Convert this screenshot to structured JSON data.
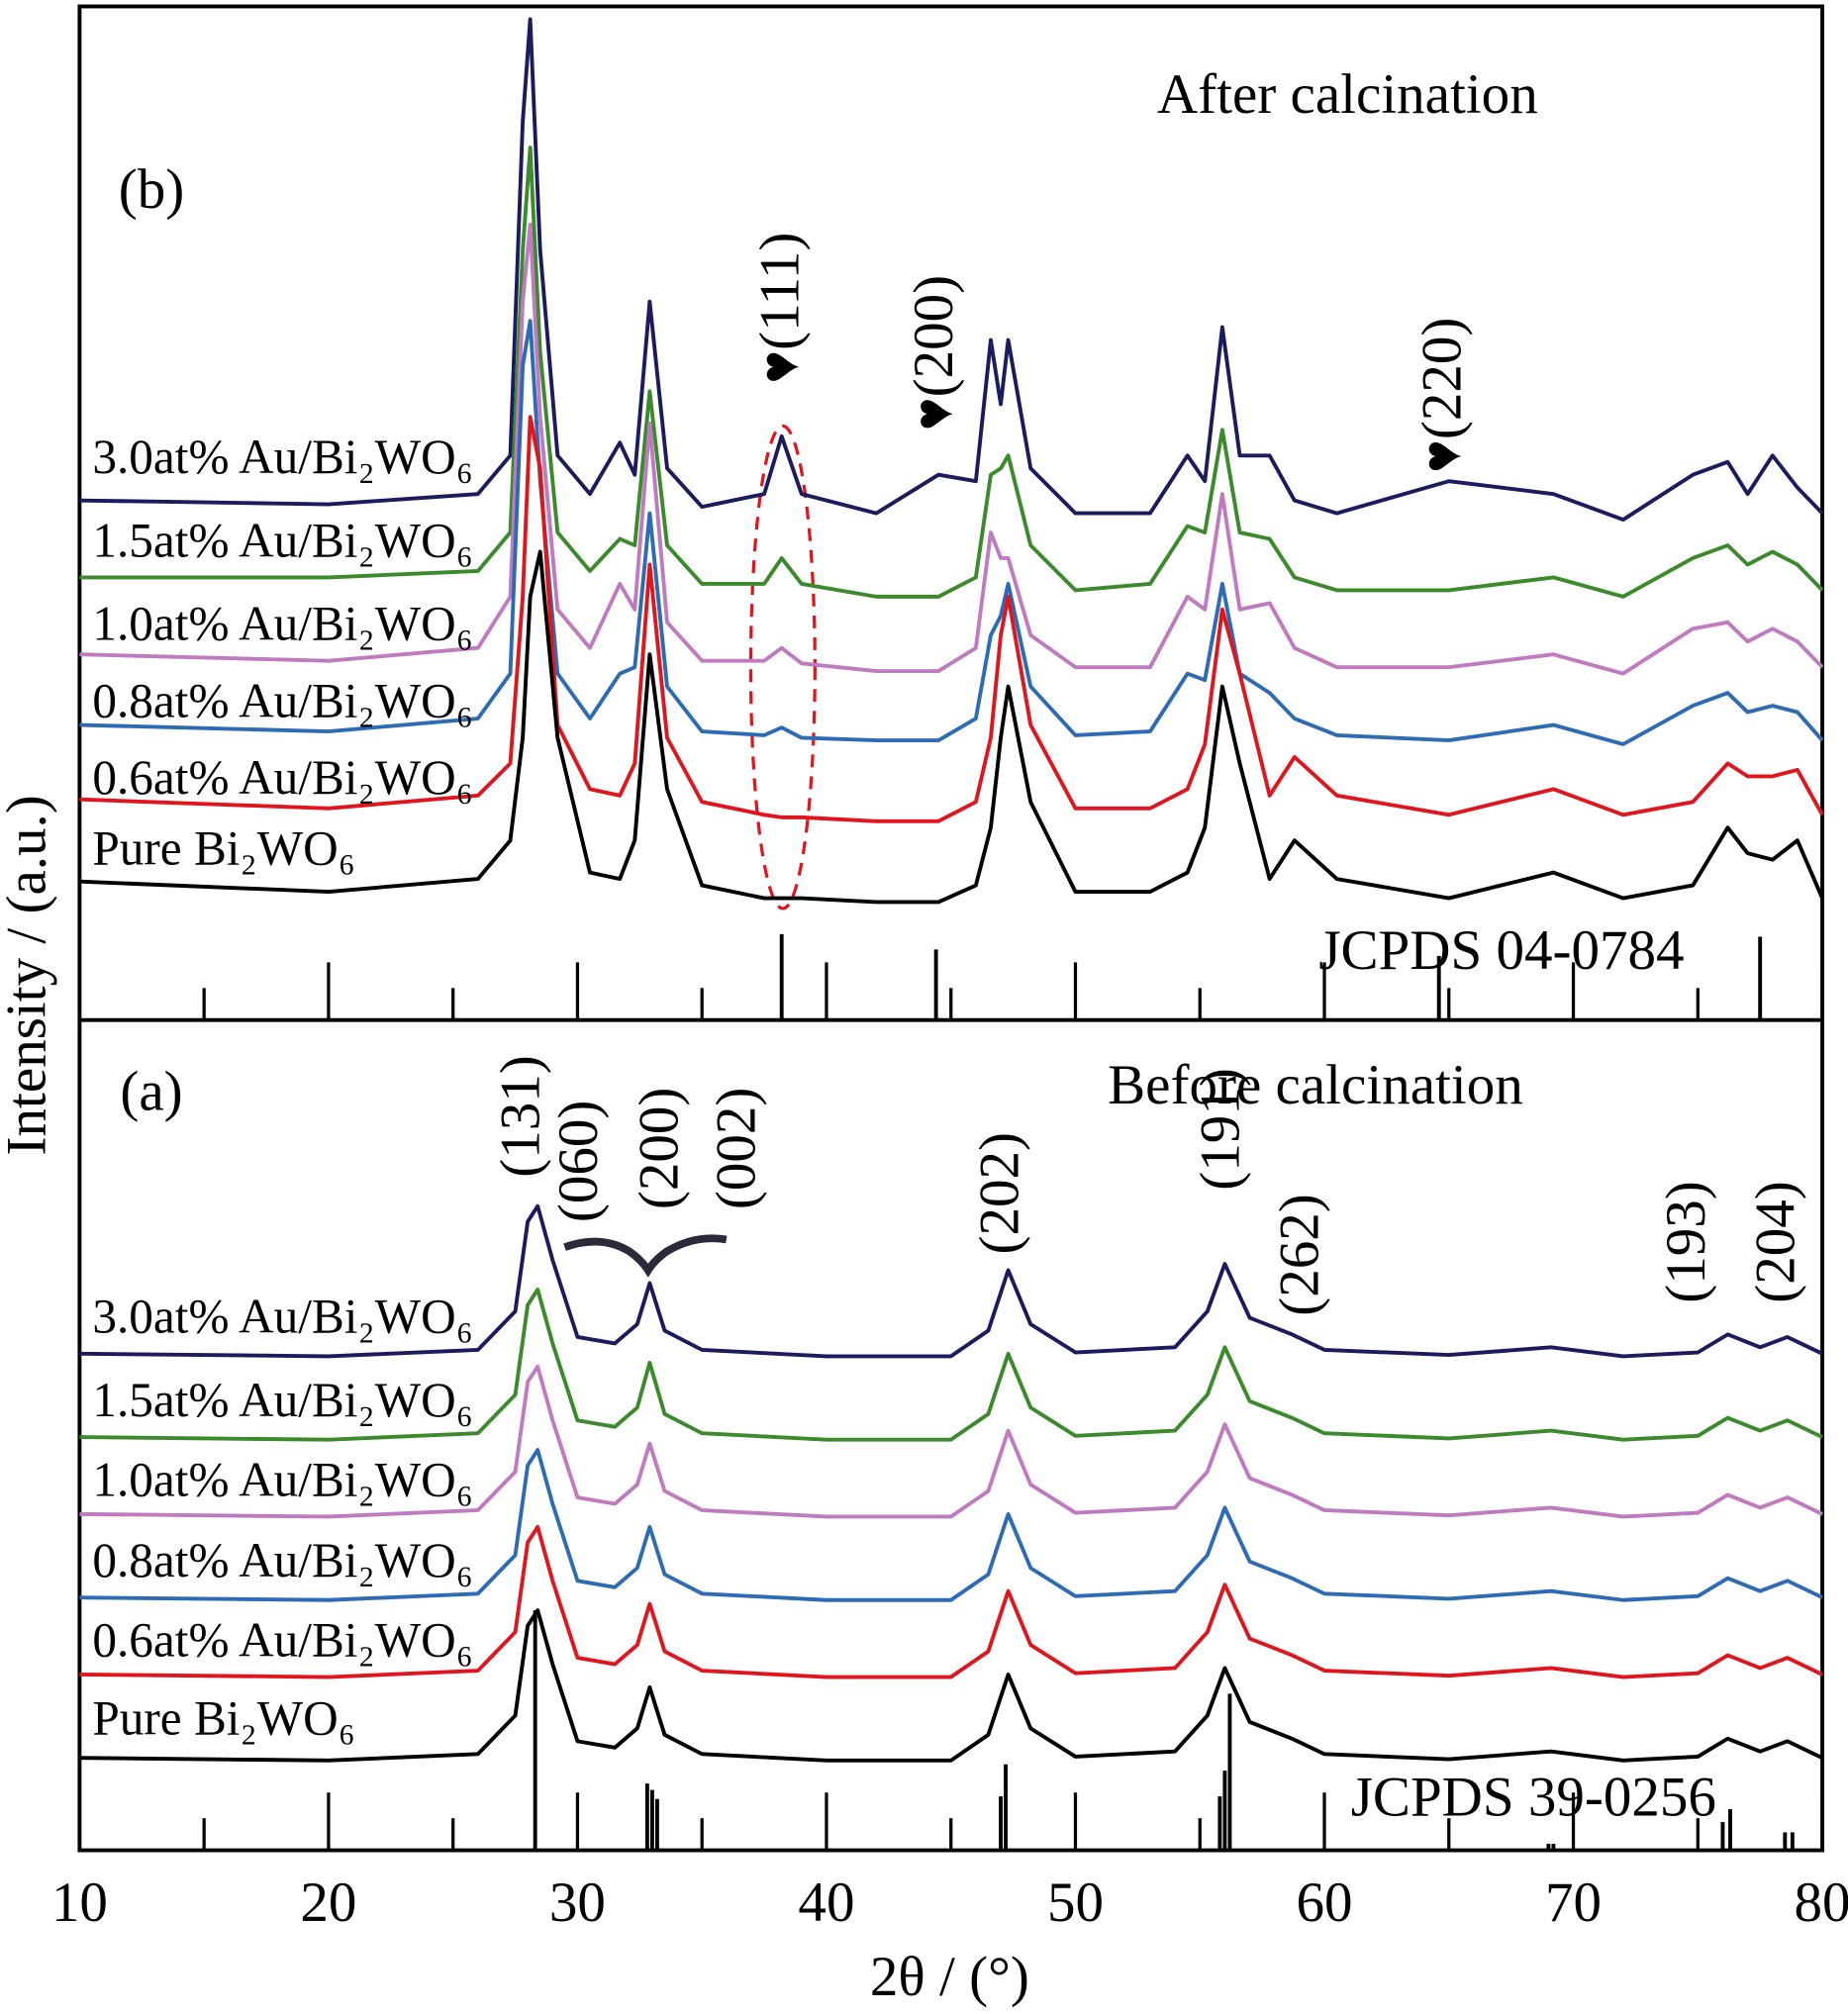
{
  "chart_data": [
    {
      "type": "line",
      "ylabel": "Intensity / (a.u.)",
      "annotations": [
        "After calcination",
        "(b)",
        "♥(111)",
        "♥(200)",
        "♥(220)"
      ],
      "reference": {
        "name": "JCPDS 04-0784",
        "x": [
          38.2,
          44.4,
          64.6,
          77.5
        ],
        "values": [
          67,
          55,
          50,
          65
        ]
      },
      "xlim": [
        10,
        80
      ],
      "ylim": [
        0,
        790
      ],
      "x": [
        10,
        20,
        26,
        27.3,
        27.8,
        28.1,
        28.5,
        29.2,
        30.5,
        31.7,
        32.3,
        32.9,
        33.6,
        35,
        37.5,
        38.2,
        39,
        42,
        44.5,
        46,
        46.6,
        47.0,
        47.3,
        48.2,
        50,
        53,
        54.5,
        55.2,
        55.9,
        56.6,
        57.8,
        58.8,
        60.5,
        65,
        69.2,
        72,
        74.8,
        76.2,
        77,
        78,
        79,
        80
      ],
      "series": [
        {
          "name": "3.0at% Au/Bi₂WO₆",
          "color": "#1b1b5e",
          "values": [
            405,
            402,
            410,
            440,
            700,
            780,
            600,
            440,
            410,
            450,
            425,
            560,
            430,
            400,
            410,
            455,
            410,
            395,
            425,
            420,
            530,
            480,
            530,
            430,
            395,
            395,
            440,
            420,
            540,
            440,
            440,
            405,
            395,
            420,
            410,
            390,
            425,
            435,
            410,
            440,
            415,
            395
          ]
        },
        {
          "name": "1.5at% Au/Bi₂WO₆",
          "color": "#3b8a2c",
          "values": [
            345,
            345,
            350,
            380,
            600,
            680,
            520,
            380,
            350,
            375,
            370,
            490,
            370,
            340,
            340,
            360,
            340,
            330,
            330,
            345,
            425,
            430,
            440,
            370,
            335,
            340,
            385,
            380,
            460,
            380,
            375,
            345,
            335,
            335,
            345,
            330,
            360,
            370,
            355,
            365,
            355,
            335
          ]
        },
        {
          "name": "1.0at% Au/Bi₂WO₆",
          "color": "#c07ac0",
          "values": [
            285,
            280,
            290,
            330,
            560,
            620,
            470,
            320,
            290,
            340,
            320,
            465,
            310,
            280,
            280,
            290,
            278,
            272,
            272,
            290,
            380,
            360,
            360,
            300,
            275,
            275,
            330,
            320,
            410,
            320,
            325,
            290,
            275,
            275,
            285,
            270,
            305,
            310,
            295,
            305,
            295,
            275
          ]
        },
        {
          "name": "0.8at% Au/Bi₂WO₆",
          "color": "#2e6bb5",
          "values": [
            230,
            225,
            235,
            270,
            510,
            545,
            420,
            270,
            235,
            270,
            275,
            395,
            260,
            225,
            222,
            228,
            220,
            218,
            218,
            235,
            300,
            315,
            340,
            260,
            222,
            225,
            270,
            265,
            340,
            270,
            255,
            235,
            222,
            218,
            230,
            215,
            245,
            255,
            240,
            245,
            240,
            218
          ]
        },
        {
          "name": "0.6at% Au/Bi₂WO₆",
          "color": "#e0161e",
          "values": [
            172,
            165,
            175,
            200,
            330,
            470,
            430,
            230,
            180,
            175,
            200,
            355,
            220,
            170,
            160,
            158,
            158,
            155,
            155,
            170,
            220,
            300,
            330,
            230,
            165,
            165,
            180,
            215,
            320,
            270,
            175,
            205,
            175,
            160,
            180,
            160,
            170,
            200,
            190,
            190,
            195,
            160
          ]
        },
        {
          "name": "Pure Bi₂WO₆",
          "color": "#000000",
          "values": [
            108,
            100,
            110,
            140,
            220,
            330,
            365,
            220,
            115,
            110,
            140,
            285,
            180,
            105,
            95,
            95,
            95,
            92,
            92,
            105,
            150,
            220,
            260,
            170,
            100,
            100,
            115,
            150,
            260,
            200,
            110,
            140,
            110,
            95,
            115,
            95,
            105,
            150,
            130,
            125,
            140,
            95
          ]
        }
      ]
    },
    {
      "type": "line",
      "xlabel": "2θ / (°)",
      "annotations": [
        "Before calcination",
        "(a)",
        "(131)",
        "(060)",
        "(200)",
        "(002)",
        "(202)",
        "(191)",
        "(262)",
        "(193)",
        "(204)"
      ],
      "reference": {
        "name": "JCPDS 39-0256",
        "x": [
          28.3,
          32.8,
          33.0,
          33.2,
          47.0,
          47.2,
          55.8,
          56.0,
          56.2,
          69.0,
          69.2,
          76.0,
          76.3,
          78.5,
          78.8
        ],
        "values": [
          187,
          52,
          47,
          40,
          42,
          67,
          42,
          62,
          122,
          5,
          5,
          22,
          32,
          14,
          14
        ]
      },
      "xlim": [
        10,
        80
      ],
      "ylim": [
        0,
        647
      ],
      "xticks": [
        10,
        20,
        30,
        40,
        50,
        60,
        70,
        80
      ],
      "xminorticks": [
        15,
        25,
        35,
        45,
        55,
        65,
        75
      ],
      "x": [
        10,
        20,
        26,
        27.5,
        28.0,
        28.4,
        29.0,
        30,
        31.5,
        32.4,
        32.9,
        33.5,
        35,
        40,
        45,
        46.5,
        47.3,
        48.2,
        50,
        54,
        55.3,
        56.0,
        57,
        58.7,
        60,
        65,
        69.1,
        72,
        75,
        76.2,
        77.5,
        78.6,
        80
      ],
      "series": [
        {
          "name": "3.0at% Au/Bi₂WO₆",
          "color": "#1b1b5e",
          "values": [
            387,
            385,
            390,
            420,
            490,
            502,
            460,
            400,
            395,
            410,
            442,
            405,
            390,
            385,
            385,
            405,
            452,
            410,
            388,
            392,
            420,
            457,
            415,
            402,
            390,
            386,
            392,
            385,
            388,
            402,
            392,
            400,
            387
          ]
        },
        {
          "name": "1.5at% Au/Bi₂WO₆",
          "color": "#3b8a2c",
          "values": [
            322,
            320,
            325,
            355,
            425,
            437,
            395,
            335,
            330,
            345,
            380,
            340,
            325,
            320,
            320,
            340,
            387,
            345,
            323,
            327,
            355,
            392,
            350,
            337,
            325,
            321,
            327,
            320,
            323,
            337,
            327,
            335,
            322
          ]
        },
        {
          "name": "1.0at% Au/Bi₂WO₆",
          "color": "#c07ac0",
          "values": [
            262,
            260,
            265,
            295,
            365,
            377,
            335,
            275,
            270,
            285,
            317,
            280,
            265,
            260,
            260,
            280,
            327,
            285,
            263,
            267,
            295,
            332,
            290,
            277,
            265,
            261,
            267,
            260,
            263,
            277,
            267,
            275,
            262
          ]
        },
        {
          "name": "0.8at% Au/Bi₂WO₆",
          "color": "#2e6bb5",
          "values": [
            197,
            195,
            200,
            230,
            300,
            312,
            270,
            210,
            205,
            220,
            252,
            215,
            200,
            195,
            195,
            215,
            262,
            220,
            198,
            202,
            230,
            267,
            225,
            212,
            200,
            196,
            202,
            195,
            198,
            212,
            202,
            210,
            197
          ]
        },
        {
          "name": "0.6at% Au/Bi₂WO₆",
          "color": "#e0161e",
          "values": [
            137,
            135,
            140,
            170,
            240,
            252,
            210,
            150,
            145,
            160,
            192,
            155,
            140,
            135,
            135,
            155,
            202,
            160,
            138,
            142,
            170,
            207,
            165,
            152,
            140,
            136,
            142,
            135,
            138,
            152,
            142,
            150,
            137
          ]
        },
        {
          "name": "Pure Bi₂WO₆",
          "color": "#000000",
          "values": [
            72,
            70,
            75,
            105,
            175,
            187,
            145,
            85,
            80,
            95,
            127,
            90,
            75,
            70,
            70,
            90,
            137,
            95,
            73,
            77,
            105,
            142,
            100,
            87,
            75,
            71,
            77,
            70,
            73,
            87,
            77,
            85,
            72
          ]
        }
      ]
    }
  ]
}
